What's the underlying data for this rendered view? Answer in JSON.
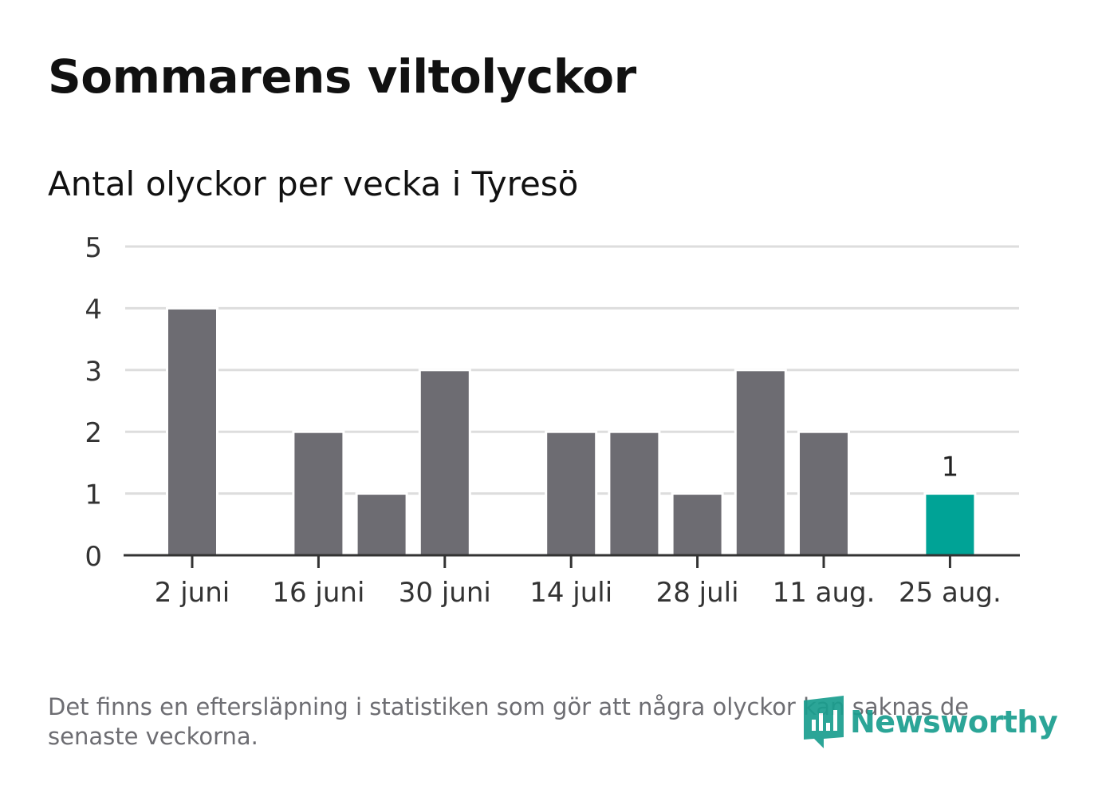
{
  "title": "Sommarens viltolyckor",
  "subtitle": "Antal olyckor per vecka i Tyresö",
  "footnote": "Det finns en eftersläpning i statistiken som gör att några olyckor kan saknas de senaste veckorna.",
  "logo_text": "Newsworthy",
  "colors": {
    "bar": "#6d6c72",
    "highlight": "#00a396",
    "grid": "#dddddd",
    "axis": "#333333",
    "brand": "#1a9e8f"
  },
  "chart_data": {
    "type": "bar",
    "title": "Antal olyckor per vecka i Tyresö",
    "xlabel": "",
    "ylabel": "",
    "ylim": [
      0,
      5
    ],
    "yticks": [
      "0",
      "1",
      "2",
      "3",
      "4",
      "5"
    ],
    "xticks": [
      "2 juni",
      "16 juni",
      "30 juni",
      "14 juli",
      "28 juli",
      "11 aug.",
      "25 aug."
    ],
    "categories": [
      "2 juni",
      "9 juni",
      "16 juni",
      "23 juni",
      "30 juni",
      "7 juli",
      "14 juli",
      "21 juli",
      "28 juli",
      "4 aug.",
      "11 aug.",
      "18 aug.",
      "25 aug."
    ],
    "values": [
      4,
      0,
      2,
      1,
      3,
      0,
      2,
      2,
      1,
      3,
      2,
      0,
      1
    ],
    "highlight_last": true,
    "last_value_label": "1",
    "grid": true
  }
}
